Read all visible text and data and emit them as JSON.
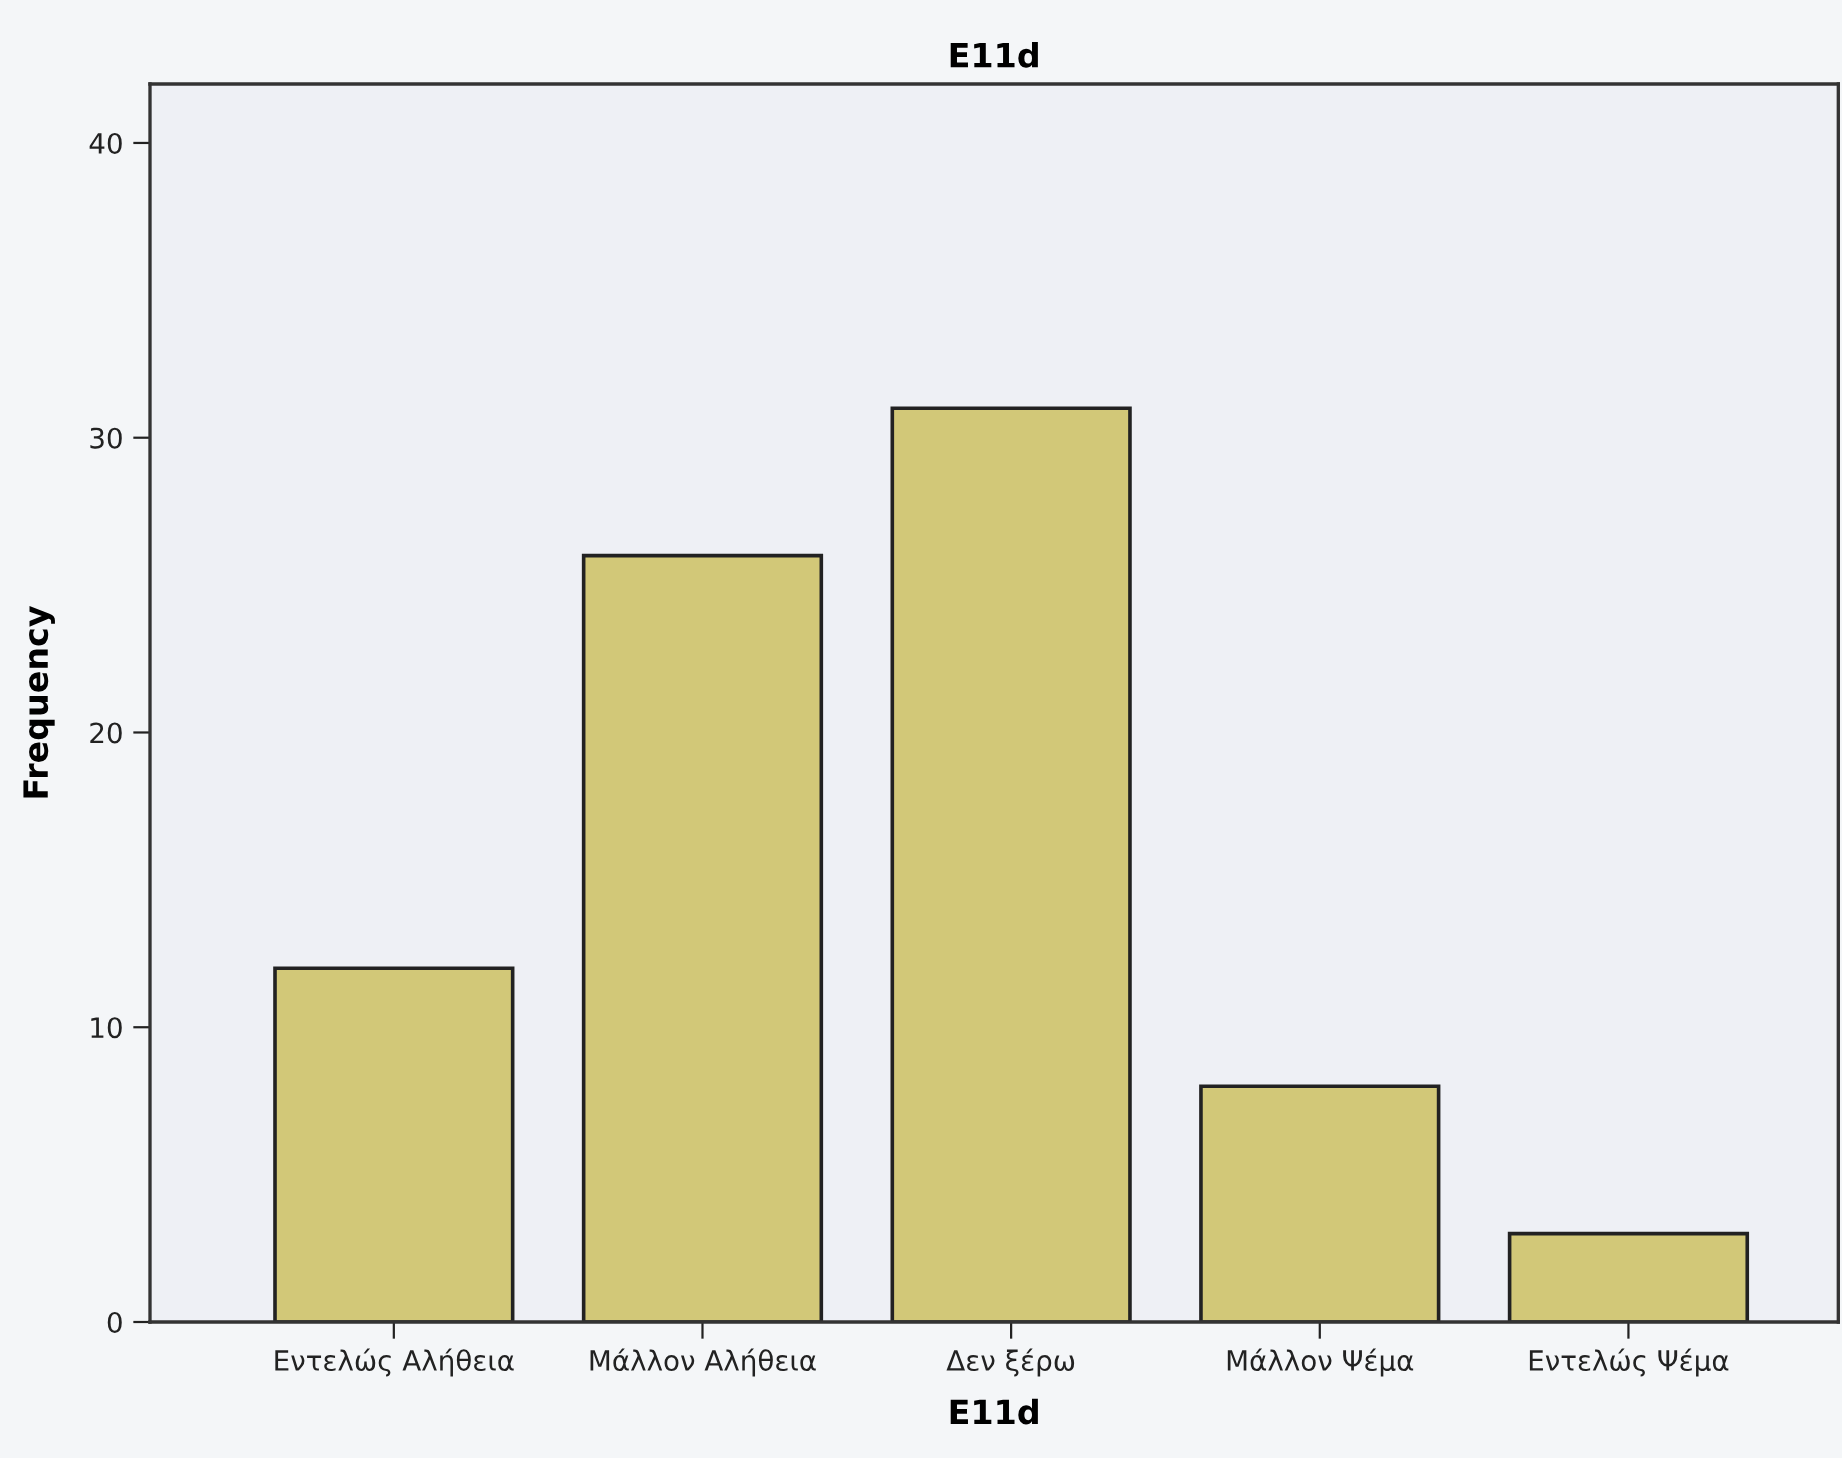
{
  "chart_data": {
    "type": "bar",
    "title": "E11d",
    "xlabel": "E11d",
    "ylabel": "Frequency",
    "categories": [
      "Εντελώς Αλήθεια",
      "Μάλλον Αλήθεια",
      "Δεν ξέρω",
      "Μάλλον Ψέμα",
      "Εντελώς Ψέμα"
    ],
    "values": [
      12,
      26,
      31,
      8,
      3
    ],
    "color": "#d2c878",
    "ylim": [
      0,
      42
    ],
    "yticks": [
      0,
      10,
      20,
      30,
      40
    ],
    "grid": false,
    "legend": false
  }
}
